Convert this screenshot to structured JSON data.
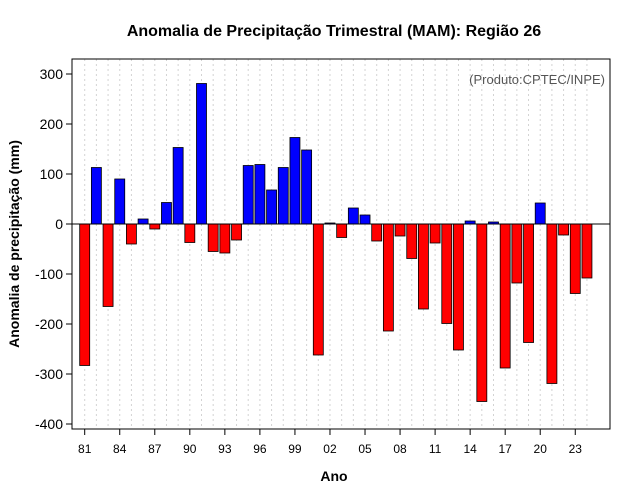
{
  "chart_data": {
    "type": "bar",
    "title": "Anomalia de Precipitação Trimestral (MAM): Região 26",
    "xlabel": "Ano",
    "ylabel": "Anomalia de precipitação (mm)",
    "credit": "(Produto:CPTEC/INPE)",
    "ylim": [
      -410,
      330
    ],
    "yticks": [
      -400,
      -300,
      -200,
      -100,
      0,
      100,
      200,
      300
    ],
    "tick_labels": [
      "81",
      "84",
      "87",
      "90",
      "93",
      "96",
      "99",
      "02",
      "05",
      "08",
      "11",
      "14",
      "17",
      "20",
      "23"
    ],
    "tick_years": [
      1981,
      1984,
      1987,
      1990,
      1993,
      1996,
      1999,
      2002,
      2005,
      2008,
      2011,
      2014,
      2017,
      2020,
      2023
    ],
    "grid": true,
    "colors": {
      "positive": "#0000ff",
      "negative": "#ff0000",
      "zero_line": "#000000",
      "grid": "#d3d3d3"
    },
    "years": [
      1981,
      1982,
      1983,
      1984,
      1985,
      1986,
      1987,
      1988,
      1989,
      1990,
      1991,
      1992,
      1993,
      1994,
      1995,
      1996,
      1997,
      1998,
      1999,
      2000,
      2001,
      2002,
      2003,
      2004,
      2005,
      2006,
      2007,
      2008,
      2009,
      2010,
      2011,
      2012,
      2013,
      2014,
      2015,
      2016,
      2017,
      2018,
      2019,
      2020,
      2021,
      2022,
      2023,
      2024
    ],
    "values": [
      -283,
      113,
      -165,
      90,
      -40,
      10,
      -10,
      43,
      153,
      -37,
      281,
      -55,
      -58,
      -32,
      117,
      119,
      68,
      113,
      173,
      148,
      -262,
      2,
      -27,
      32,
      18,
      -34,
      -214,
      -24,
      -69,
      -170,
      -38,
      -199,
      -252,
      6,
      -355,
      4,
      -288,
      -118,
      -237,
      42,
      -319,
      -22,
      -139,
      -108
    ]
  }
}
